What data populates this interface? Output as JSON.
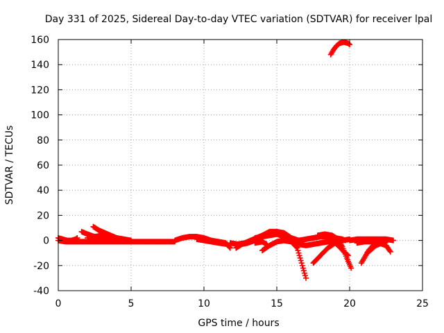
{
  "chart_data": {
    "type": "scatter",
    "title": "Day 331 of 2025, Sidereal Day-to-day VTEC variation (SDTVAR) for receiver lpal",
    "xlabel": "GPS time / hours",
    "ylabel": "SDTVAR / TECUs",
    "xlim": [
      0,
      25
    ],
    "ylim": [
      -40,
      160
    ],
    "x_ticks": [
      0,
      5,
      10,
      15,
      20,
      25
    ],
    "y_ticks": [
      -40,
      -20,
      0,
      20,
      40,
      60,
      80,
      100,
      120,
      140,
      160
    ],
    "grid": true,
    "marker": "plus",
    "colors": {
      "series": "#ff0000",
      "grid": "#a0a0a0",
      "axes": "#000000"
    },
    "series": [
      {
        "values": [
          [
            0.0,
            0
          ],
          [
            0.5,
            -1
          ],
          [
            1.0,
            -1
          ],
          [
            1.5,
            -1
          ],
          [
            2.0,
            -1
          ],
          [
            2.5,
            -1
          ],
          [
            3.0,
            -1
          ],
          [
            3.5,
            -1
          ],
          [
            4.0,
            -1
          ],
          [
            4.5,
            -1
          ],
          [
            5.0,
            -1
          ],
          [
            5.5,
            -1
          ],
          [
            6.0,
            -1
          ],
          [
            6.5,
            -1
          ],
          [
            7.0,
            -1
          ],
          [
            7.5,
            -1
          ],
          [
            8.0,
            -1
          ]
        ]
      },
      {
        "values": [
          [
            0.0,
            2
          ],
          [
            0.3,
            1
          ],
          [
            0.6,
            0
          ],
          [
            0.9,
            0
          ],
          [
            1.2,
            1
          ],
          [
            1.3,
            2
          ]
        ]
      },
      {
        "values": [
          [
            1.6,
            7
          ],
          [
            2.0,
            5
          ],
          [
            2.5,
            3
          ],
          [
            3.0,
            2
          ],
          [
            3.5,
            2
          ],
          [
            4.0,
            1
          ],
          [
            4.5,
            0
          ]
        ]
      },
      {
        "values": [
          [
            2.4,
            11
          ],
          [
            2.8,
            8
          ],
          [
            3.2,
            6
          ],
          [
            3.6,
            4
          ],
          [
            4.0,
            2
          ],
          [
            4.5,
            0
          ],
          [
            5.0,
            -1
          ]
        ]
      },
      {
        "values": [
          [
            2.0,
            2
          ],
          [
            2.5,
            3
          ],
          [
            3.0,
            4
          ],
          [
            3.5,
            3
          ],
          [
            4.0,
            2
          ],
          [
            4.5,
            1
          ],
          [
            5.0,
            0
          ]
        ]
      },
      {
        "values": [
          [
            8.0,
            0
          ],
          [
            8.5,
            2
          ],
          [
            9.0,
            3
          ],
          [
            9.5,
            3
          ],
          [
            10.0,
            2
          ],
          [
            10.5,
            0
          ],
          [
            11.0,
            -1
          ],
          [
            11.5,
            -2
          ],
          [
            11.8,
            -6
          ]
        ]
      },
      {
        "values": [
          [
            9.5,
            1
          ],
          [
            10.0,
            0
          ],
          [
            10.5,
            -1
          ],
          [
            11.0,
            -2
          ],
          [
            11.6,
            -3
          ]
        ]
      },
      {
        "values": [
          [
            11.8,
            -2
          ],
          [
            12.3,
            -3
          ],
          [
            12.8,
            -2
          ],
          [
            13.2,
            0
          ],
          [
            13.6,
            2
          ],
          [
            14.0,
            4
          ]
        ]
      },
      {
        "values": [
          [
            12.2,
            -6
          ],
          [
            12.6,
            -3
          ],
          [
            13.0,
            -2
          ],
          [
            13.5,
            0
          ],
          [
            14.0,
            4
          ],
          [
            14.5,
            7
          ],
          [
            15.0,
            7
          ],
          [
            15.5,
            6
          ],
          [
            16.0,
            2
          ],
          [
            16.5,
            0
          ]
        ]
      },
      {
        "values": [
          [
            13.5,
            2
          ],
          [
            14.0,
            3
          ],
          [
            14.5,
            4
          ],
          [
            15.0,
            5
          ],
          [
            15.5,
            3
          ],
          [
            16.0,
            1
          ],
          [
            16.5,
            0
          ]
        ]
      },
      {
        "values": [
          [
            13.5,
            -2
          ],
          [
            14.0,
            -1
          ],
          [
            14.3,
            -3
          ]
        ]
      },
      {
        "values": [
          [
            14.0,
            -8
          ],
          [
            14.5,
            -4
          ],
          [
            15.0,
            -1
          ],
          [
            15.5,
            0
          ],
          [
            16.0,
            -1
          ],
          [
            16.4,
            -6
          ],
          [
            16.7,
            -18
          ],
          [
            17.0,
            -30
          ]
        ]
      },
      {
        "values": [
          [
            15.5,
            0
          ],
          [
            16.0,
            -1
          ],
          [
            16.5,
            -3
          ],
          [
            17.0,
            -4
          ],
          [
            17.5,
            -3
          ],
          [
            18.0,
            -2
          ],
          [
            18.5,
            -1
          ],
          [
            19.0,
            -1
          ]
        ]
      },
      {
        "values": [
          [
            16.5,
            0
          ],
          [
            17.0,
            1
          ],
          [
            17.5,
            2
          ],
          [
            18.0,
            3
          ],
          [
            18.5,
            3
          ],
          [
            19.0,
            2
          ],
          [
            19.5,
            1
          ],
          [
            19.7,
            0
          ]
        ]
      },
      {
        "values": [
          [
            17.5,
            -18
          ],
          [
            18.0,
            -12
          ],
          [
            18.5,
            -6
          ],
          [
            19.0,
            -2
          ],
          [
            19.5,
            0
          ],
          [
            20.0,
            1
          ]
        ]
      },
      {
        "values": [
          [
            17.8,
            4
          ],
          [
            18.3,
            5
          ],
          [
            18.8,
            4
          ],
          [
            19.2,
            1
          ],
          [
            19.5,
            -5
          ],
          [
            19.8,
            -14
          ],
          [
            20.1,
            -22
          ]
        ]
      },
      {
        "values": [
          [
            18.5,
            2
          ],
          [
            18.8,
            0
          ],
          [
            19.2,
            -4
          ],
          [
            19.6,
            -9
          ],
          [
            19.9,
            -12
          ]
        ]
      },
      {
        "values": [
          [
            20.0,
            0
          ],
          [
            20.5,
            1
          ],
          [
            21.0,
            1
          ],
          [
            21.5,
            1
          ],
          [
            22.0,
            1
          ],
          [
            22.5,
            1
          ],
          [
            23.0,
            0
          ]
        ]
      },
      {
        "values": [
          [
            20.5,
            -2
          ],
          [
            21.0,
            -1
          ],
          [
            21.5,
            -1
          ],
          [
            22.0,
            -2
          ],
          [
            22.5,
            -4
          ],
          [
            22.8,
            -9
          ]
        ]
      },
      {
        "values": [
          [
            20.8,
            -18
          ],
          [
            21.0,
            -14
          ],
          [
            21.3,
            -8
          ],
          [
            21.6,
            -4
          ],
          [
            22.0,
            -2
          ]
        ]
      },
      {
        "values": [
          [
            21.2,
            -10
          ],
          [
            21.5,
            -7
          ],
          [
            21.8,
            -4
          ],
          [
            22.2,
            -2
          ],
          [
            22.6,
            0
          ]
        ]
      },
      {
        "values": [
          [
            18.7,
            148
          ],
          [
            18.9,
            152
          ],
          [
            19.1,
            155
          ],
          [
            19.3,
            157
          ],
          [
            19.6,
            158
          ],
          [
            19.9,
            157
          ],
          [
            20.0,
            156
          ]
        ]
      }
    ]
  }
}
